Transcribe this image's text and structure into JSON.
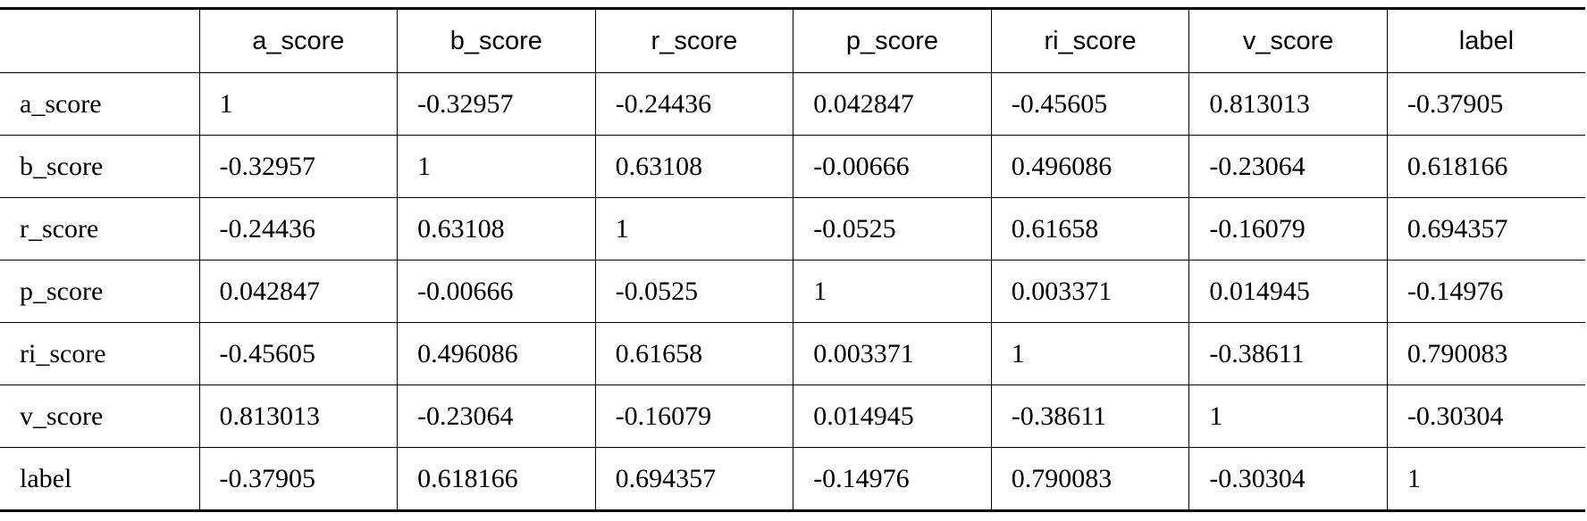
{
  "table": {
    "header": [
      "",
      "a_score",
      "b_score",
      "r_score",
      "p_score",
      "ri_score",
      "v_score",
      "label"
    ],
    "rows": [
      [
        "a_score",
        1,
        -0.32957,
        -0.24436,
        0.042847,
        -0.45605,
        0.813013,
        -0.37905
      ],
      [
        "b_score",
        -0.32957,
        1,
        0.63108,
        -0.00666,
        0.496086,
        -0.23064,
        0.618166
      ],
      [
        "r_score",
        -0.24436,
        0.63108,
        1,
        -0.0525,
        0.61658,
        -0.16079,
        0.694357
      ],
      [
        "p_score",
        0.042847,
        -0.00666,
        -0.0525,
        1,
        0.003371,
        0.014945,
        -0.14976
      ],
      [
        "ri_score",
        -0.45605,
        0.496086,
        0.61658,
        0.003371,
        1,
        -0.38611,
        0.790083
      ],
      [
        "v_score",
        0.813013,
        -0.23064,
        -0.16079,
        0.014945,
        -0.38611,
        1,
        -0.30304
      ],
      [
        "label",
        -0.37905,
        0.618166,
        0.694357,
        -0.14976,
        0.790083,
        -0.30304,
        1
      ]
    ]
  }
}
